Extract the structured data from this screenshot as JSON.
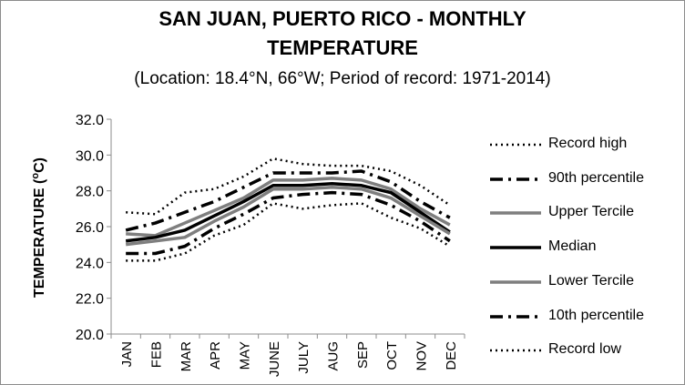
{
  "chart_data": {
    "type": "line",
    "title_line1": "SAN JUAN, PUERTO RICO - MONTHLY",
    "title_line2": "TEMPERATURE",
    "subtitle": "(Location: 18.4°N, 66°W; Period of record: 1971-2014)",
    "ylabel_main": "TEMPERATURE (",
    "ylabel_sup": "o",
    "ylabel_end": "C)",
    "ylim": [
      20.0,
      32.0
    ],
    "yticks": [
      "20.0",
      "22.0",
      "24.0",
      "26.0",
      "28.0",
      "30.0",
      "32.0"
    ],
    "categories": [
      "JAN",
      "FEB",
      "MAR",
      "APR",
      "MAY",
      "JUNE",
      "JULY",
      "AUG",
      "SEP",
      "OCT",
      "NOV",
      "DEC"
    ],
    "grid": false,
    "legend_position": "right",
    "series": [
      {
        "name": "Record high",
        "style": "dotted",
        "color": "#000000",
        "values": [
          26.8,
          26.7,
          27.9,
          28.1,
          28.8,
          29.8,
          29.5,
          29.4,
          29.4,
          29.1,
          28.3,
          27.2
        ]
      },
      {
        "name": "90th percentile",
        "style": "dashdot",
        "color": "#000000",
        "values": [
          25.8,
          26.2,
          26.8,
          27.4,
          28.2,
          29.0,
          29.0,
          29.0,
          29.1,
          28.5,
          27.4,
          26.5
        ]
      },
      {
        "name": "Upper Tercile",
        "style": "solid",
        "color": "#7f7f7f",
        "values": [
          25.6,
          25.5,
          26.2,
          26.9,
          27.6,
          28.6,
          28.6,
          28.7,
          28.6,
          28.1,
          27.0,
          26.1
        ]
      },
      {
        "name": "Median",
        "style": "solid",
        "color": "#000000",
        "values": [
          25.2,
          25.4,
          25.8,
          26.6,
          27.4,
          28.3,
          28.3,
          28.4,
          28.3,
          27.9,
          26.8,
          25.7
        ]
      },
      {
        "name": "Lower Tercile",
        "style": "solid",
        "color": "#7f7f7f",
        "values": [
          25.0,
          25.2,
          25.4,
          26.3,
          27.1,
          28.1,
          28.1,
          28.2,
          28.1,
          27.6,
          26.6,
          25.6
        ]
      },
      {
        "name": "10th percentile",
        "style": "dashdot",
        "color": "#000000",
        "values": [
          24.5,
          24.5,
          24.9,
          25.9,
          26.7,
          27.6,
          27.8,
          27.9,
          27.8,
          27.2,
          26.3,
          25.2
        ]
      },
      {
        "name": "Record low",
        "style": "dotted",
        "color": "#000000",
        "values": [
          24.1,
          24.1,
          24.5,
          25.5,
          26.1,
          27.3,
          27.0,
          27.2,
          27.3,
          26.5,
          25.9,
          24.9
        ]
      }
    ]
  }
}
